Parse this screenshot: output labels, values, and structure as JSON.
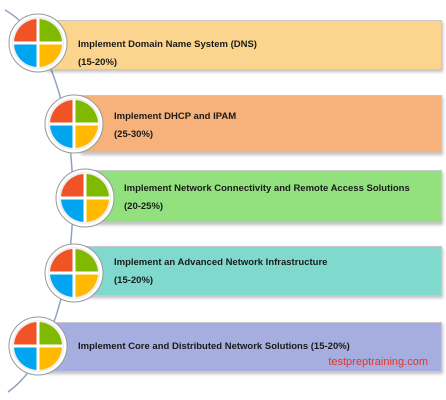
{
  "colors": {
    "q_top_left": "#f05325",
    "q_top_right": "#7fba00",
    "q_bottom_left": "#00a4ef",
    "q_bottom_right": "#ffb900",
    "bar1": "#fbd58e",
    "bar2": "#f7b27c",
    "bar3": "#93e07f",
    "bar4": "#7fd9cd",
    "bar5": "#a6aee0",
    "footer": "#e2352b"
  },
  "items": [
    {
      "title": "Implement Domain Name System (DNS)",
      "weight": "(15-20%)",
      "icon": "windows-logo-icon"
    },
    {
      "title": "Implement DHCP and IPAM",
      "weight": "(25-30%)",
      "icon": "windows-logo-icon"
    },
    {
      "title": "Implement Network Connectivity and Remote Access Solutions",
      "weight": "(20-25%)",
      "icon": "windows-logo-icon"
    },
    {
      "title": "Implement an Advanced Network Infrastructure",
      "weight": "(15-20%)",
      "icon": "windows-logo-icon"
    },
    {
      "title": "Implement Core and Distributed Network Solutions (15-20%)",
      "icon": "windows-logo-icon"
    }
  ],
  "footer": {
    "text": "testpreptraining.com"
  }
}
